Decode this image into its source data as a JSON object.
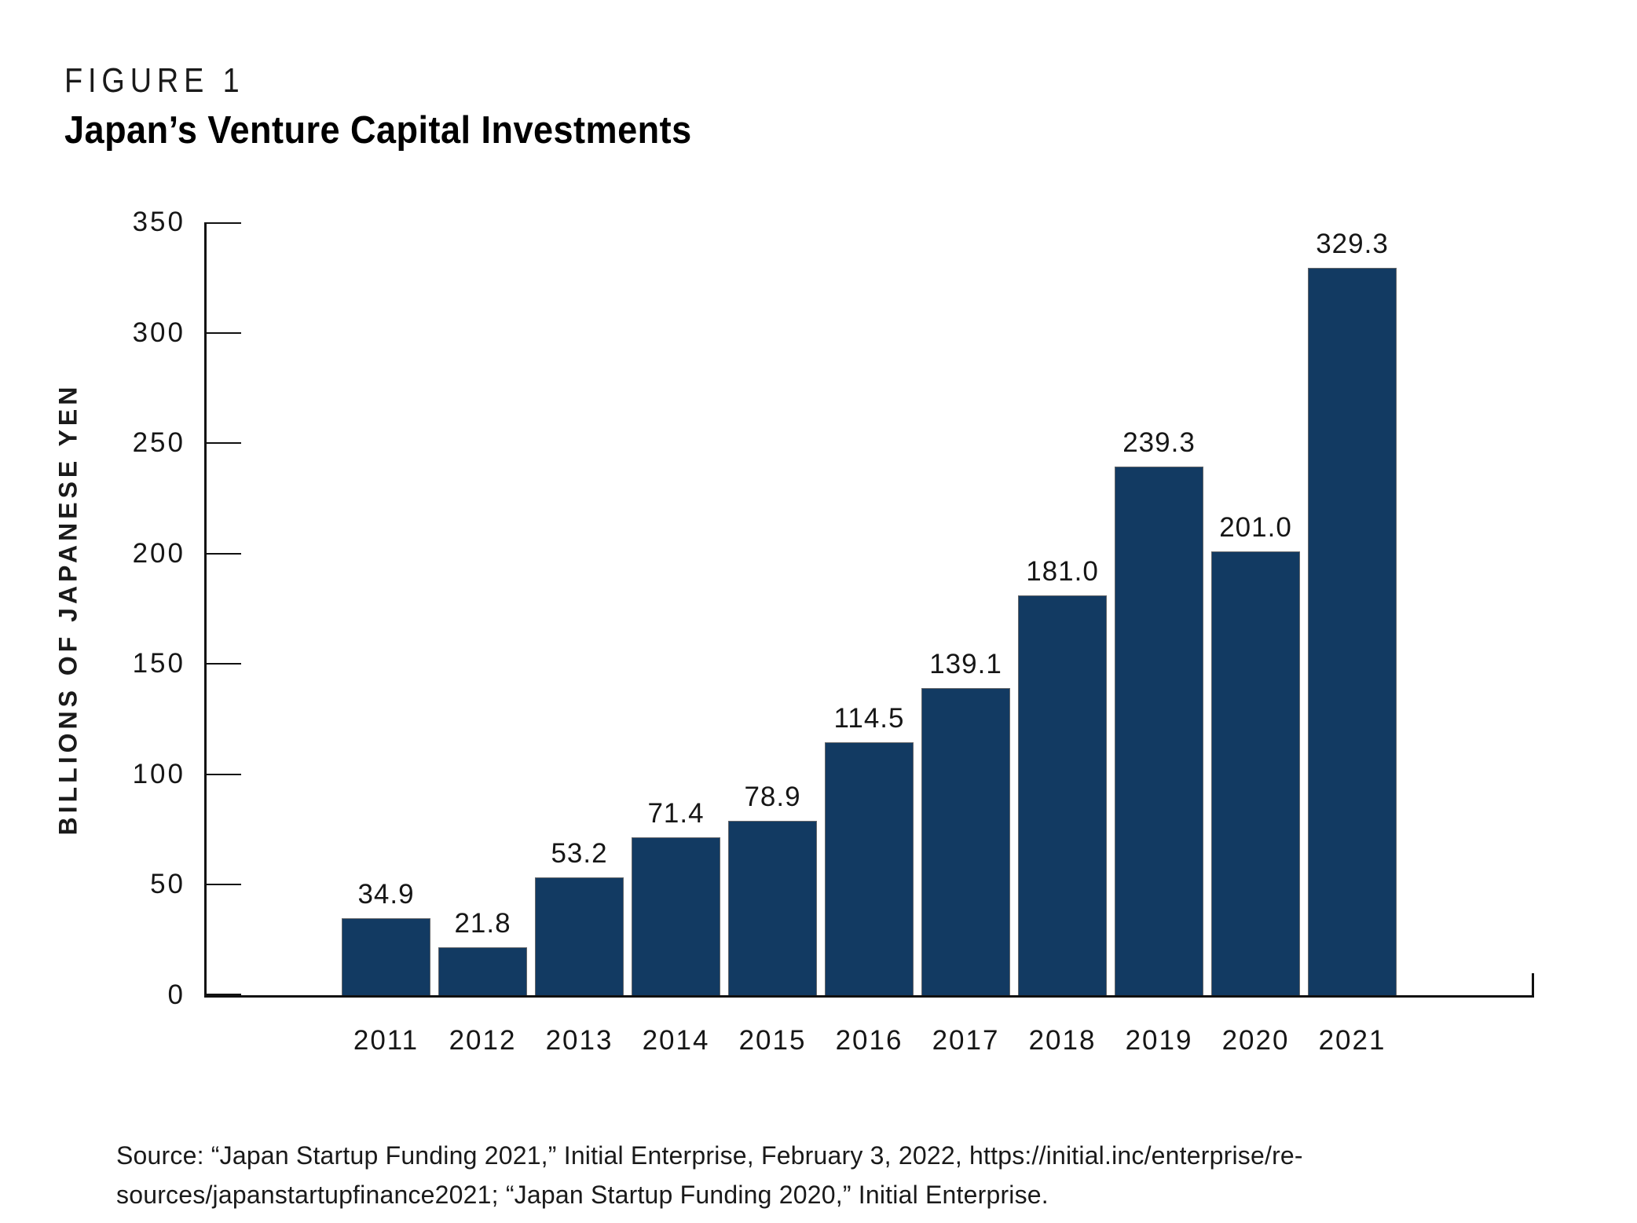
{
  "figure_label": "FIGURE 1",
  "title": "Japan’s Venture Capital Investments",
  "chart_data": {
    "type": "bar",
    "title": "Japan’s Venture Capital Investments",
    "categories": [
      "2011",
      "2012",
      "2013",
      "2014",
      "2015",
      "2016",
      "2017",
      "2018",
      "2019",
      "2020",
      "2021"
    ],
    "values": [
      34.9,
      21.8,
      53.2,
      71.4,
      78.9,
      114.5,
      139.1,
      181.0,
      239.3,
      201.0,
      329.3
    ],
    "value_labels": [
      "34.9",
      "21.8",
      "53.2",
      "71.4",
      "78.9",
      "114.5",
      "139.1",
      "181.0",
      "239.3",
      "201.0",
      "329.3"
    ],
    "xlabel": "",
    "ylabel": "BILLIONS OF JAPANESE YEN",
    "ylim": [
      0,
      350
    ],
    "yticks": [
      0,
      50,
      100,
      150,
      200,
      250,
      300,
      350
    ],
    "grid": false,
    "legend_position": "none",
    "bar_color": "#123A62",
    "bar_outline_color": "#63666a",
    "axis_color": "#111111",
    "text_color": "#161616"
  },
  "source": {
    "line1": "Source: “Japan Startup Funding 2021,” Initial Enterprise, February 3, 2022, https://initial.inc/enterprise/re-",
    "line2": "sources/japanstartupfinance2021; “Japan Startup Funding 2020,” Initial Enterprise."
  }
}
